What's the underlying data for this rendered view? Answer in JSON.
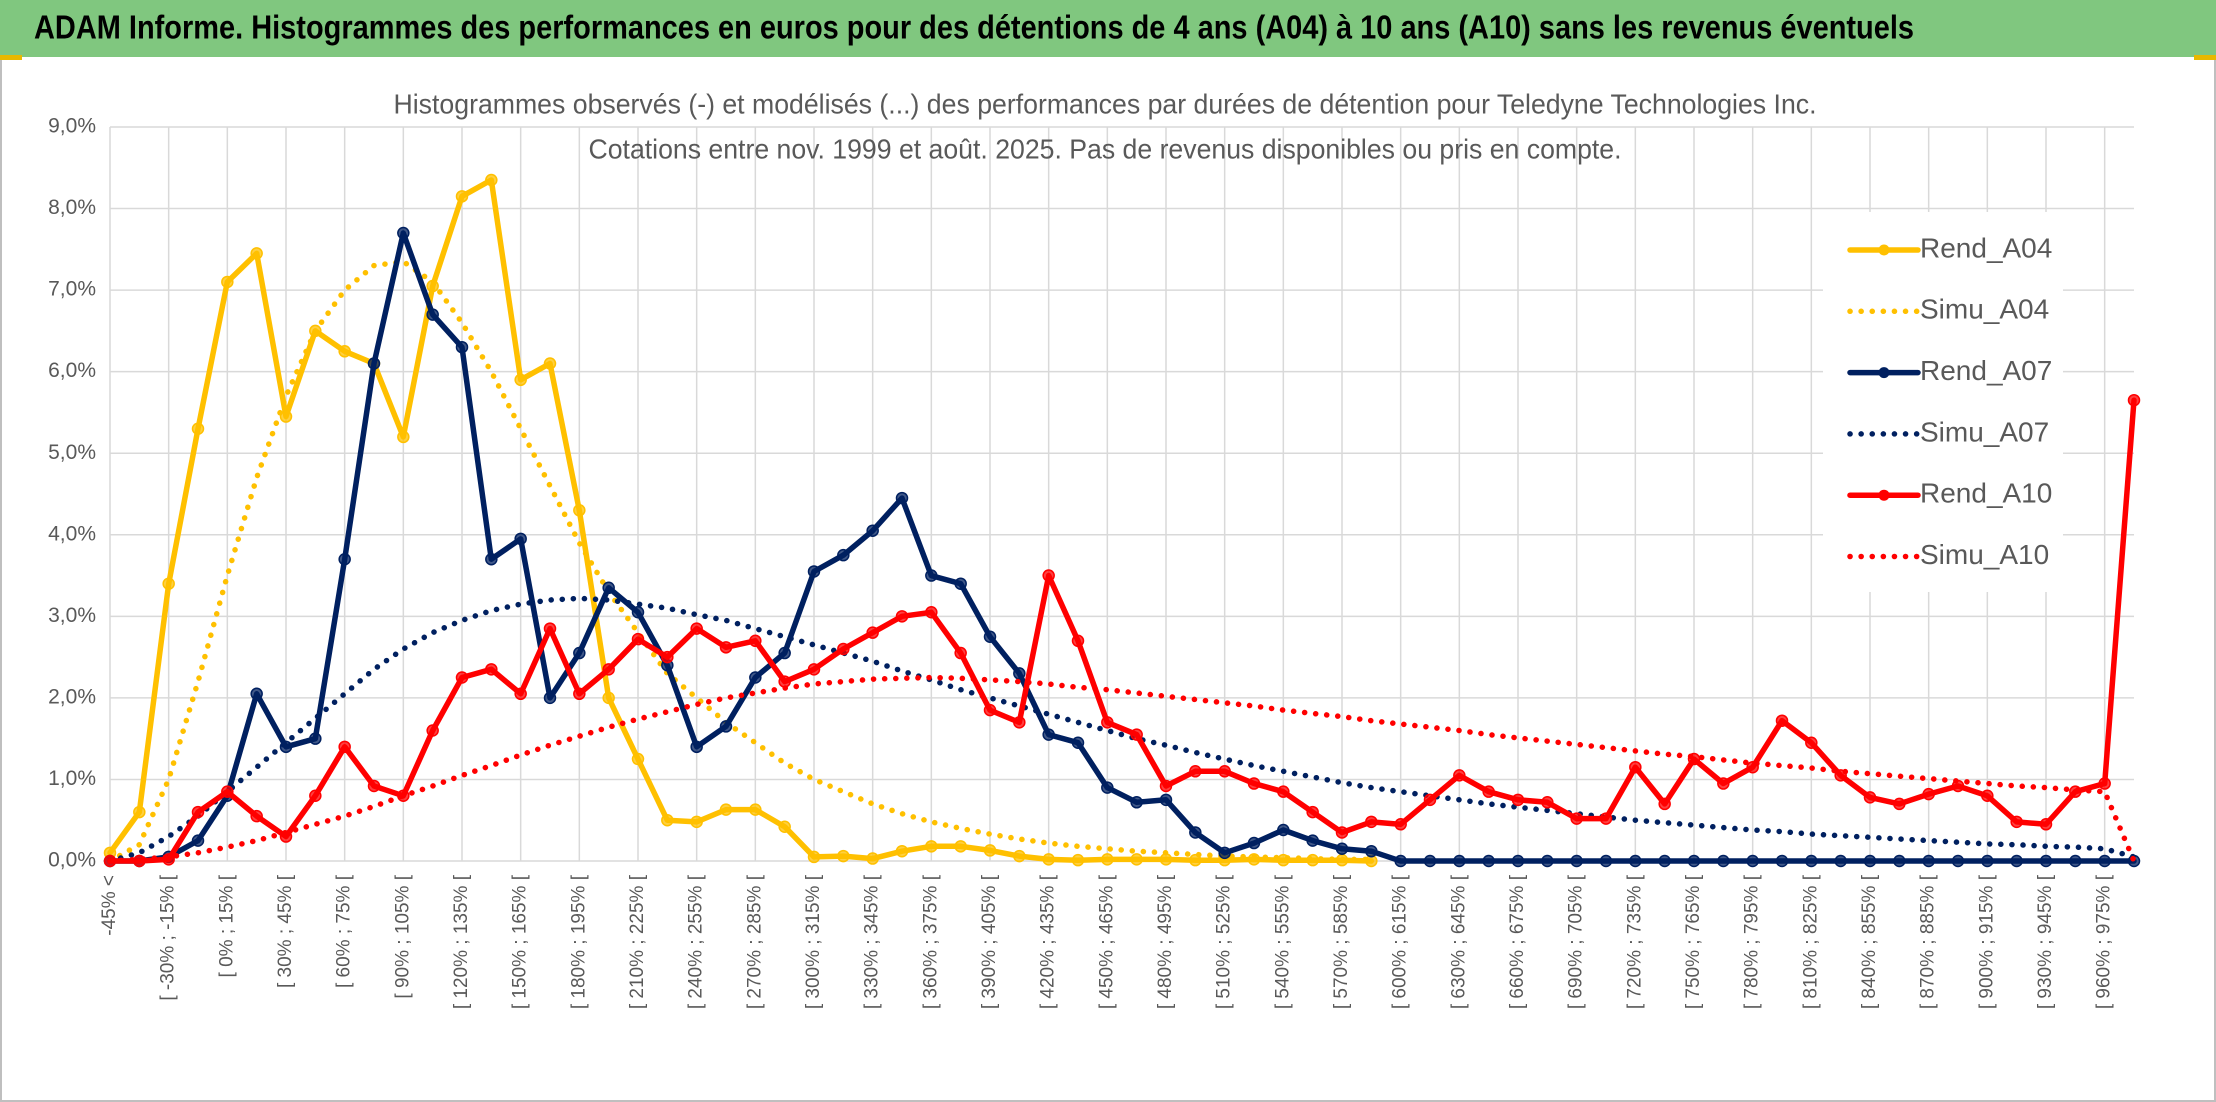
{
  "header": {
    "title": "ADAM Informe. Histogrammes des performances en euros pour des détentions de 4 ans (A04) à 10 ans (A10) sans les revenus éventuels"
  },
  "chart_data": {
    "type": "line",
    "title": "Histogrammes observés (-) et modélisés (...) des performances par durées de détention pour Teledyne Technologies Inc.",
    "subtitle": "Cotations entre nov. 1999 et août. 2025. Pas de revenus disponibles ou pris en compte.",
    "categories": [
      "-45% <",
      null,
      "[ -30% ; -15% [",
      null,
      "[ 0% ; 15% [",
      null,
      "[ 30% ; 45% [",
      null,
      "[ 60% ; 75% [",
      null,
      "[ 90% ; 105% [",
      null,
      "[ 120% ; 135% [",
      null,
      "[ 150% ; 165% [",
      null,
      "[ 180% ; 195% [",
      null,
      "[ 210% ; 225% [",
      null,
      "[ 240% ; 255% [",
      null,
      "[ 270% ; 285% [",
      null,
      "[ 300% ; 315% [",
      null,
      "[ 330% ; 345% [",
      null,
      "[ 360% ; 375% [",
      null,
      "[ 390% ; 405% [",
      null,
      "[ 420% ; 435% [",
      null,
      "[ 450% ; 465% [",
      null,
      "[ 480% ; 495% [",
      null,
      "[ 510% ; 525% [",
      null,
      "[ 540% ; 555% [",
      null,
      "[ 570% ; 585% [",
      null,
      "[ 600% ; 615% [",
      null,
      "[ 630% ; 645% [",
      null,
      "[ 660% ; 675% [",
      null,
      "[ 690% ; 705% [",
      null,
      "[ 720% ; 735% [",
      null,
      "[ 750% ; 765% [",
      null,
      "[ 780% ; 795% [",
      null,
      "[ 810% ; 825% [",
      null,
      "[ 840% ; 855% [",
      null,
      "[ 870% ; 885% [",
      null,
      "[ 900% ; 915% [",
      null,
      "[ 930% ; 945% [",
      null,
      "[ 960% ; 975% [",
      null
    ],
    "ylim": [
      0,
      9
    ],
    "yticks": [
      {
        "value": 0,
        "label": "0,0%"
      },
      {
        "value": 1,
        "label": "1,0%"
      },
      {
        "value": 2,
        "label": "2,0%"
      },
      {
        "value": 3,
        "label": "3,0%"
      },
      {
        "value": 4,
        "label": "4,0%"
      },
      {
        "value": 5,
        "label": "5,0%"
      },
      {
        "value": 6,
        "label": "6,0%"
      },
      {
        "value": 7,
        "label": "7,0%"
      },
      {
        "value": 8,
        "label": "8,0%"
      },
      {
        "value": 9,
        "label": "9,0%"
      }
    ],
    "grid": true,
    "legend": "right",
    "series": [
      {
        "name": "Rend_A04",
        "color": "#ffc000",
        "dotted": false,
        "values": [
          0.1,
          0.6,
          3.4,
          5.3,
          7.1,
          7.45,
          5.45,
          6.5,
          6.25,
          6.1,
          5.2,
          7.05,
          8.15,
          8.35,
          5.9,
          6.1,
          4.3,
          2.0,
          1.25,
          0.5,
          0.48,
          0.63,
          0.63,
          0.42,
          0.05,
          0.06,
          0.03,
          0.12,
          0.18,
          0.18,
          0.13,
          0.06,
          0.02,
          0.01,
          0.02,
          0.02,
          0.02,
          0.01,
          0.01,
          0.02,
          0.01,
          0.01,
          0.01,
          0,
          null,
          null,
          null,
          null,
          null,
          null,
          null,
          null,
          null,
          null,
          null,
          null,
          null,
          null,
          null,
          null,
          null,
          null,
          null,
          null,
          null,
          null,
          null,
          null,
          null,
          null
        ]
      },
      {
        "name": "Simu_A04",
        "color": "#ffc000",
        "dotted": true,
        "values": [
          0,
          0.2,
          1.0,
          2.2,
          3.5,
          4.7,
          5.7,
          6.5,
          7.0,
          7.3,
          7.35,
          7.1,
          6.6,
          6.0,
          5.3,
          4.6,
          3.9,
          3.3,
          2.8,
          2.3,
          2.0,
          1.7,
          1.45,
          1.2,
          1.0,
          0.85,
          0.7,
          0.58,
          0.48,
          0.4,
          0.33,
          0.27,
          0.22,
          0.18,
          0.15,
          0.12,
          0.1,
          0.08,
          0.06,
          0.05,
          0.04,
          0.03,
          0.02,
          0.02,
          null,
          null,
          null,
          null,
          null,
          null,
          null,
          null,
          null,
          null,
          null,
          null,
          null,
          null,
          null,
          null,
          null,
          null,
          null,
          null,
          null,
          null,
          null,
          null,
          null,
          null
        ]
      },
      {
        "name": "Rend_A07",
        "color": "#002060",
        "dotted": false,
        "values": [
          0,
          0,
          0.05,
          0.25,
          0.8,
          2.05,
          1.4,
          1.5,
          3.7,
          6.1,
          7.7,
          6.7,
          6.3,
          3.7,
          3.95,
          2.0,
          2.55,
          3.35,
          3.05,
          2.4,
          1.4,
          1.65,
          2.25,
          2.55,
          3.55,
          3.75,
          4.05,
          4.45,
          3.5,
          3.4,
          2.75,
          2.3,
          1.55,
          1.45,
          0.9,
          0.72,
          0.75,
          0.35,
          0.1,
          0.22,
          0.38,
          0.25,
          0.15,
          0.12,
          0,
          0,
          0,
          0,
          0,
          0,
          0,
          0,
          0,
          0,
          0,
          0,
          0,
          0,
          0,
          0,
          0,
          0,
          0,
          0,
          0,
          0,
          0,
          0,
          0,
          0
        ]
      },
      {
        "name": "Simu_A07",
        "color": "#002060",
        "dotted": true,
        "values": [
          0,
          0.1,
          0.3,
          0.55,
          0.85,
          1.15,
          1.45,
          1.75,
          2.05,
          2.35,
          2.6,
          2.8,
          2.95,
          3.07,
          3.15,
          3.2,
          3.22,
          3.2,
          3.15,
          3.1,
          3.02,
          2.95,
          2.85,
          2.75,
          2.65,
          2.55,
          2.45,
          2.33,
          2.22,
          2.1,
          2.0,
          1.9,
          1.8,
          1.7,
          1.6,
          1.5,
          1.42,
          1.33,
          1.25,
          1.17,
          1.1,
          1.03,
          0.96,
          0.9,
          0.85,
          0.8,
          0.75,
          0.7,
          0.66,
          0.62,
          0.58,
          0.54,
          0.5,
          0.47,
          0.44,
          0.41,
          0.38,
          0.36,
          0.33,
          0.31,
          0.29,
          0.27,
          0.25,
          0.23,
          0.21,
          0.2,
          0.18,
          0.17,
          0.15,
          0.05
        ]
      },
      {
        "name": "Rend_A10",
        "color": "#ff0000",
        "dotted": false,
        "values": [
          0,
          0,
          0.02,
          0.6,
          0.85,
          0.55,
          0.3,
          0.8,
          1.4,
          0.92,
          0.8,
          1.6,
          2.25,
          2.35,
          2.05,
          2.85,
          2.05,
          2.35,
          2.72,
          2.5,
          2.85,
          2.62,
          2.7,
          2.2,
          2.35,
          2.6,
          2.8,
          3.0,
          3.05,
          2.55,
          1.85,
          1.7,
          3.5,
          2.7,
          1.7,
          1.55,
          0.92,
          1.1,
          1.1,
          0.95,
          0.85,
          0.6,
          0.35,
          0.48,
          0.45,
          0.75,
          1.05,
          0.85,
          0.75,
          0.72,
          0.52,
          0.52,
          1.15,
          0.7,
          1.25,
          0.95,
          1.15,
          1.72,
          1.45,
          1.05,
          0.78,
          0.7,
          0.82,
          0.92,
          0.8,
          0.48,
          0.45,
          0.85,
          0.95,
          5.65
        ]
      },
      {
        "name": "Simu_A10",
        "color": "#ff0000",
        "dotted": true,
        "values": [
          0,
          0.02,
          0.05,
          0.1,
          0.17,
          0.25,
          0.35,
          0.45,
          0.55,
          0.67,
          0.8,
          0.92,
          1.05,
          1.17,
          1.3,
          1.42,
          1.53,
          1.64,
          1.74,
          1.83,
          1.92,
          2.0,
          2.06,
          2.12,
          2.17,
          2.2,
          2.23,
          2.24,
          2.25,
          2.24,
          2.22,
          2.2,
          2.17,
          2.13,
          2.1,
          2.06,
          2.02,
          1.98,
          1.94,
          1.9,
          1.85,
          1.81,
          1.77,
          1.72,
          1.68,
          1.64,
          1.6,
          1.55,
          1.51,
          1.47,
          1.43,
          1.39,
          1.35,
          1.31,
          1.28,
          1.24,
          1.2,
          1.17,
          1.14,
          1.1,
          1.07,
          1.04,
          1.01,
          0.98,
          0.95,
          0.92,
          0.9,
          0.87,
          0.85,
          0
        ]
      }
    ]
  }
}
